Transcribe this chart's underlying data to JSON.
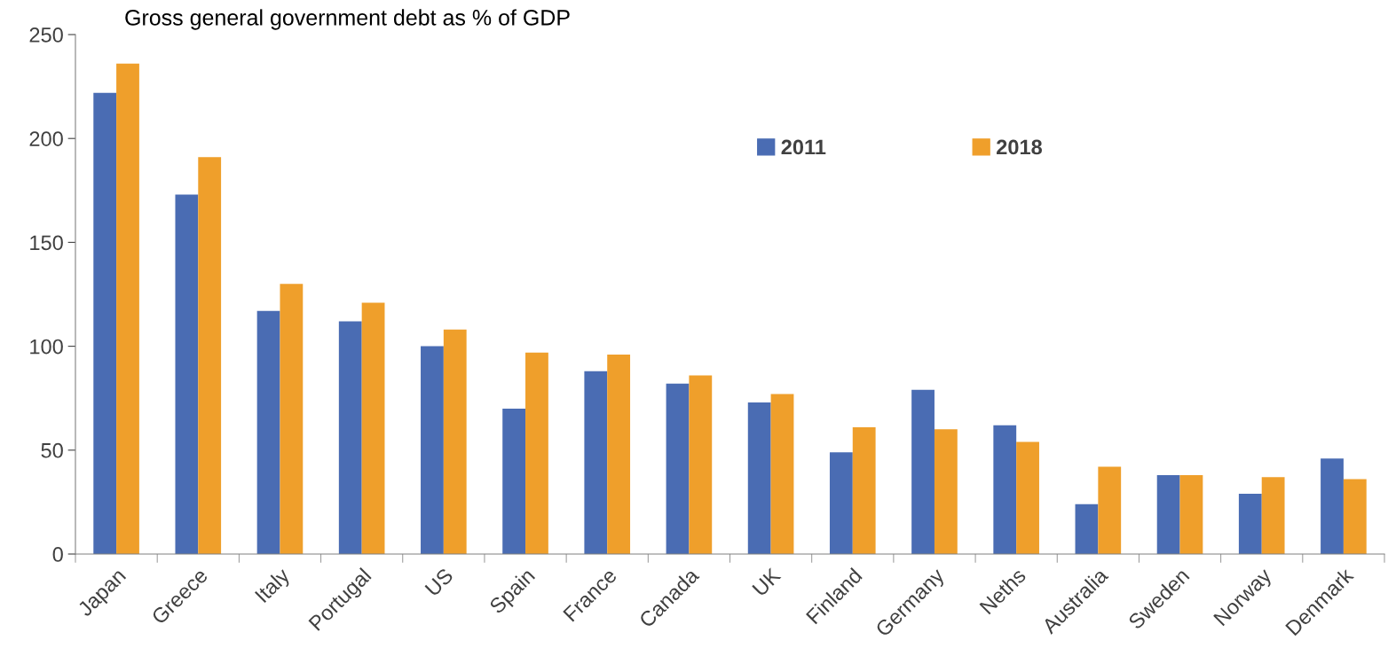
{
  "chart_data": {
    "type": "bar",
    "title": "Gross general government debt as % of GDP",
    "categories": [
      "Japan",
      "Greece",
      "Italy",
      "Portugal",
      "US",
      "Spain",
      "France",
      "Canada",
      "UK",
      "Finland",
      "Germany",
      "Neths",
      "Australia",
      "Sweden",
      "Norway",
      "Denmark"
    ],
    "series": [
      {
        "name": "2011",
        "color": "#4a6cb3",
        "values": [
          222,
          173,
          117,
          112,
          100,
          70,
          88,
          82,
          73,
          49,
          79,
          62,
          24,
          38,
          29,
          46
        ]
      },
      {
        "name": "2018",
        "color": "#ef9f2b",
        "values": [
          236,
          191,
          130,
          121,
          108,
          97,
          96,
          86,
          77,
          61,
          60,
          54,
          42,
          38,
          37,
          36
        ]
      }
    ],
    "ylim": [
      0,
      250
    ],
    "yticks": [
      0,
      50,
      100,
      150,
      200,
      250
    ],
    "grid": false,
    "legend": "top"
  }
}
